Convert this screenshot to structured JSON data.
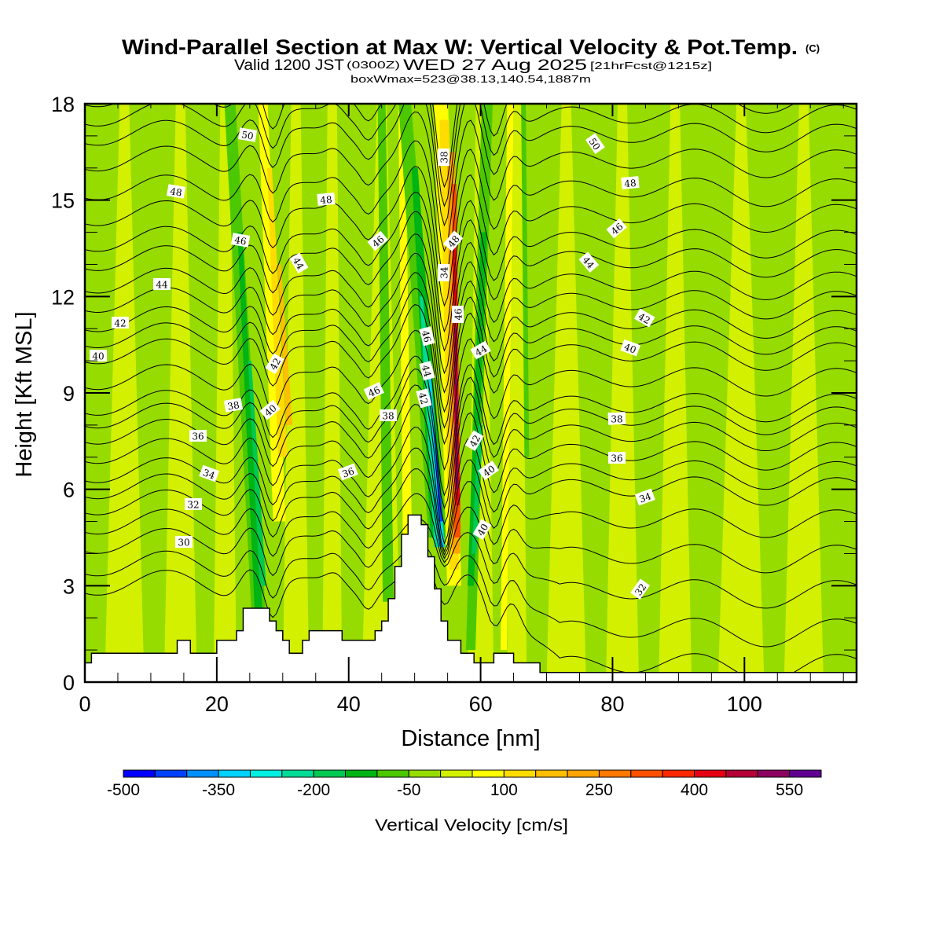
{
  "chart_data": {
    "type": "heatmap",
    "title": "Wind-Parallel Section at Max W: Vertical Velocity & Pot.Temp.",
    "title_mark": "(C)",
    "subtitle": {
      "valid": "Valid 1200 JST",
      "utc": "(0300Z)",
      "date": "WED 27 Aug 2025",
      "forecast": "[21hrFcst@1215z]"
    },
    "annotation": "boxWmax=523@38.13,140.54,1887m",
    "xlabel": "Distance [nm]",
    "ylabel": "Height [Kft MSL]",
    "xlim": [
      0,
      117
    ],
    "ylim": [
      0,
      18
    ],
    "x_ticks": [
      0,
      20,
      40,
      60,
      80,
      100
    ],
    "x_tick_labels": [
      "0",
      "20",
      "40",
      "60",
      "80",
      "100"
    ],
    "y_ticks": [
      0,
      3,
      6,
      9,
      12,
      15,
      18
    ],
    "y_tick_labels": [
      "0",
      "3",
      "6",
      "9",
      "12",
      "15",
      "18"
    ],
    "colorbar": {
      "label": "Vertical Velocity [cm/s]",
      "boundaries": [
        -500,
        -450,
        -400,
        -350,
        -300,
        -250,
        -200,
        -150,
        -100,
        -50,
        0,
        50,
        100,
        150,
        200,
        250,
        300,
        350,
        400,
        450,
        500,
        550,
        600
      ],
      "tick_values": [
        -500,
        -350,
        -200,
        -50,
        100,
        250,
        400,
        550
      ],
      "tick_labels": [
        "-500",
        "-350",
        "-200",
        "-50",
        "100",
        "250",
        "400",
        "550"
      ],
      "colors": [
        "#0000ff",
        "#0041ff",
        "#0090ff",
        "#00d2ff",
        "#00f0e1",
        "#00dc96",
        "#00c850",
        "#00b414",
        "#4bc800",
        "#96dc00",
        "#d2f000",
        "#ffff00",
        "#ffdc00",
        "#ffbe00",
        "#ffa500",
        "#ff7800",
        "#ff5000",
        "#ff2800",
        "#e60014",
        "#b40037",
        "#8c005f",
        "#5f0091"
      ]
    },
    "wmax_cm_s": 523,
    "terrain_kft": {
      "x_nm": [
        0,
        1,
        14,
        16,
        20,
        23,
        24,
        28,
        29,
        30,
        31,
        33,
        34,
        35,
        39,
        44,
        45,
        46,
        47,
        48,
        49,
        51,
        52,
        53,
        54,
        55,
        57,
        59,
        62,
        65,
        69,
        70,
        117
      ],
      "height": [
        0.6,
        0.9,
        1.3,
        0.9,
        1.3,
        1.6,
        2.3,
        1.9,
        1.6,
        1.3,
        0.9,
        1.3,
        1.6,
        1.6,
        1.3,
        1.6,
        1.9,
        2.6,
        3.6,
        4.6,
        5.2,
        4.9,
        3.9,
        2.9,
        1.9,
        1.3,
        0.9,
        0.6,
        0.9,
        0.6,
        0.3,
        0.3,
        0.3
      ]
    },
    "theta_contours": {
      "units": "K (offset labels)",
      "interval": 1,
      "label_interval": 2,
      "values": [
        28,
        29,
        30,
        31,
        32,
        33,
        34,
        35,
        36,
        37,
        38,
        39,
        40,
        41,
        42,
        43,
        44,
        45,
        46,
        47,
        48,
        49,
        50,
        51,
        52
      ],
      "upstream_height_kft": [
        3.0,
        3.6,
        4.3,
        4.9,
        5.5,
        6.0,
        6.5,
        7.1,
        7.7,
        8.2,
        8.6,
        9.4,
        10.2,
        10.7,
        11.2,
        11.8,
        12.4,
        13.1,
        13.7,
        14.5,
        15.3,
        16.2,
        17.0,
        17.6,
        18.2
      ]
    },
    "contour_labels": [
      "50",
      "48",
      "46",
      "44",
      "42",
      "40",
      "38",
      "36",
      "34",
      "32",
      "30",
      "48",
      "46",
      "44",
      "42",
      "40",
      "38",
      "48",
      "46",
      "38",
      "36",
      "34",
      "46",
      "44",
      "46",
      "42",
      "44",
      "42",
      "40",
      "40",
      "38",
      "36",
      "34",
      "50",
      "48",
      "46",
      "44",
      "42",
      "40",
      "38",
      "36",
      "34",
      "32"
    ],
    "features": [
      {
        "name": "main-updraft",
        "x_nm": 56,
        "w_max_cm_s": 523,
        "top_kft": 15.5
      },
      {
        "name": "main-downdraft",
        "x_nm": 53,
        "w_min_cm_s": -500,
        "top_kft": 11
      },
      {
        "name": "secondary-updraft",
        "x_nm": 30,
        "w_cm_s": 175
      },
      {
        "name": "secondary-downdraft",
        "x_nm": 27,
        "w_cm_s": -175
      }
    ]
  }
}
